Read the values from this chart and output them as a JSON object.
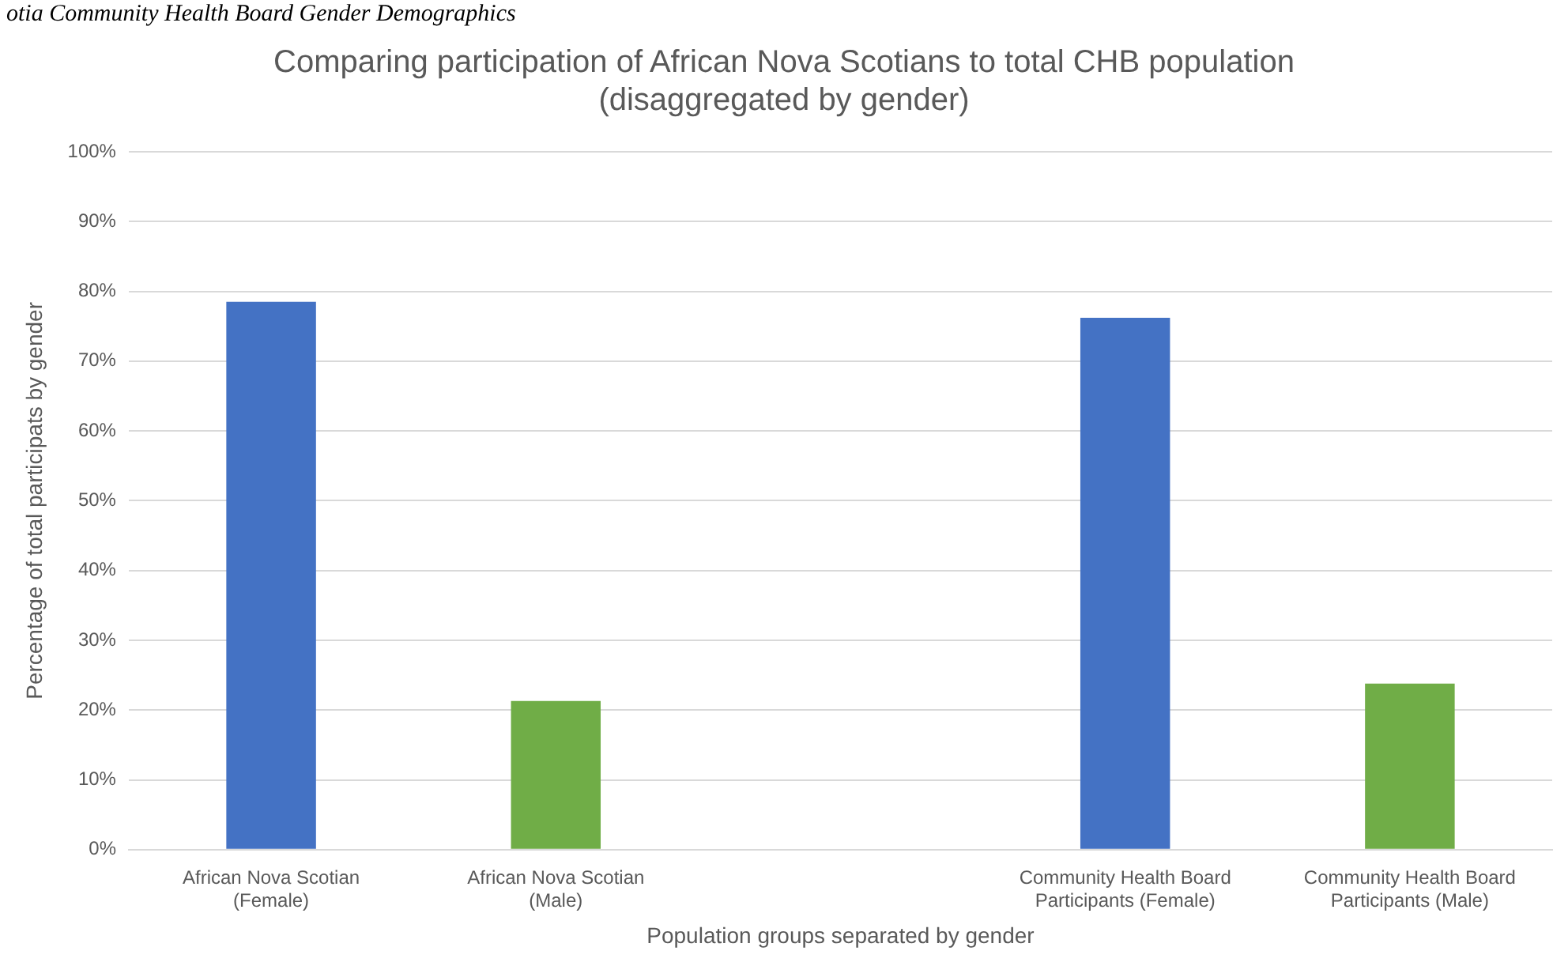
{
  "chart_data": {
    "type": "bar",
    "title": [
      "Comparing participation of African Nova Scotians to total CHB population",
      "(disaggregated by gender)"
    ],
    "annotations": [
      "otia Community Health Board Gender Demographics"
    ],
    "xlabel": "Population groups separated by gender",
    "ylabel": "Percentage of total participats by gender",
    "categories": [
      "African Nova Scotian (Female)",
      "African Nova Scotian (Male)",
      null,
      "Community Health Board Participants (Female)",
      "Community Health Board Participants (Male)"
    ],
    "values": [
      78.5,
      21.3,
      null,
      76.2,
      23.8
    ],
    "colors": [
      "#4472c4",
      "#70ad47",
      "#4472c4",
      "#4472c4",
      "#70ad47"
    ],
    "ylim": [
      0,
      100
    ],
    "yticks": [
      {
        "value": 0,
        "label": "0%"
      },
      {
        "value": 10,
        "label": "10%"
      },
      {
        "value": 20,
        "label": "20%"
      },
      {
        "value": 30,
        "label": "30%"
      },
      {
        "value": 40,
        "label": "40%"
      },
      {
        "value": 50,
        "label": "50%"
      },
      {
        "value": 60,
        "label": "60%"
      },
      {
        "value": 70,
        "label": "70%"
      },
      {
        "value": 80,
        "label": "80%"
      },
      {
        "value": 90,
        "label": "90%"
      },
      {
        "value": 100,
        "label": "100%"
      }
    ],
    "grid": "y",
    "legend": false
  }
}
